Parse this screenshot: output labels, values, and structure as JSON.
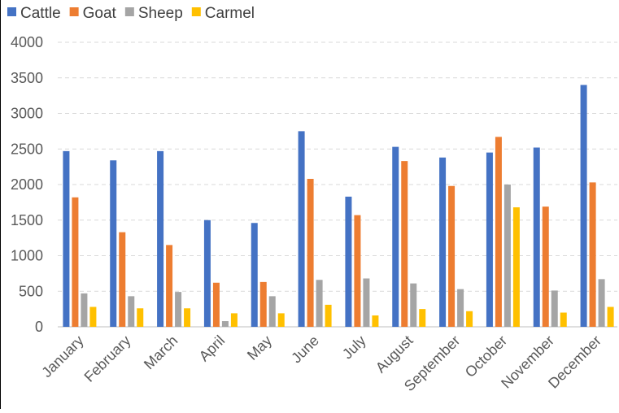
{
  "chart_data": {
    "type": "bar",
    "title": "",
    "xlabel": "",
    "ylabel": "",
    "ylim": [
      0,
      4000
    ],
    "yticks": [
      0,
      500,
      1000,
      1500,
      2000,
      2500,
      3000,
      3500,
      4000
    ],
    "grid": true,
    "legend_position": "top-left",
    "categories": [
      "January",
      "February",
      "March",
      "April",
      "May",
      "June",
      "July",
      "August",
      "September",
      "October",
      "November",
      "December"
    ],
    "series": [
      {
        "name": "Cattle",
        "color": "#4472c4",
        "values": [
          2470,
          2340,
          2470,
          1500,
          1460,
          2750,
          1830,
          2530,
          2380,
          2450,
          2520,
          3400
        ]
      },
      {
        "name": "Goat",
        "color": "#ed7d31",
        "values": [
          1820,
          1330,
          1150,
          620,
          630,
          2080,
          1570,
          2330,
          1980,
          2670,
          1690,
          2030
        ]
      },
      {
        "name": "Sheep",
        "color": "#a5a5a5",
        "values": [
          470,
          430,
          490,
          80,
          430,
          660,
          680,
          610,
          530,
          2000,
          510,
          670
        ]
      },
      {
        "name": "Carmel",
        "color": "#ffc000",
        "values": [
          280,
          260,
          260,
          190,
          190,
          310,
          160,
          250,
          220,
          1680,
          200,
          280
        ]
      }
    ]
  }
}
